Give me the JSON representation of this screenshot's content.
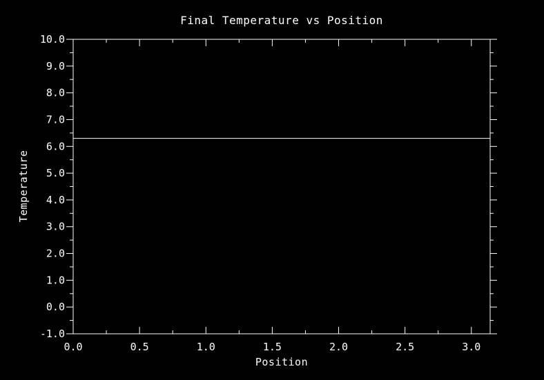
{
  "chart_data": {
    "type": "line",
    "title": "Final Temperature vs Position",
    "xlabel": "Position",
    "ylabel": "Temperature",
    "xlim": [
      0.0,
      3.1416
    ],
    "ylim": [
      -1.0,
      10.0
    ],
    "x_ticks": [
      0.0,
      0.5,
      1.0,
      1.5,
      2.0,
      2.5,
      3.0
    ],
    "x_tick_labels": [
      "0.0",
      "0.5",
      "1.0",
      "1.5",
      "2.0",
      "2.5",
      "3.0"
    ],
    "x_minor_step": 0.25,
    "y_ticks": [
      -1.0,
      0.0,
      1.0,
      2.0,
      3.0,
      4.0,
      5.0,
      6.0,
      7.0,
      8.0,
      9.0,
      10.0
    ],
    "y_tick_labels": [
      "-1.0",
      "0.0",
      "1.0",
      "2.0",
      "3.0",
      "4.0",
      "5.0",
      "6.0",
      "7.0",
      "8.0",
      "9.0",
      "10.0"
    ],
    "y_minor_step": 0.5,
    "grid": false,
    "series": [
      {
        "x": [
          0.0,
          3.1416
        ],
        "y": [
          6.3,
          6.3
        ],
        "color": "#ffffff"
      }
    ],
    "colors": {
      "background": "#000000",
      "foreground": "#ffffff"
    }
  }
}
